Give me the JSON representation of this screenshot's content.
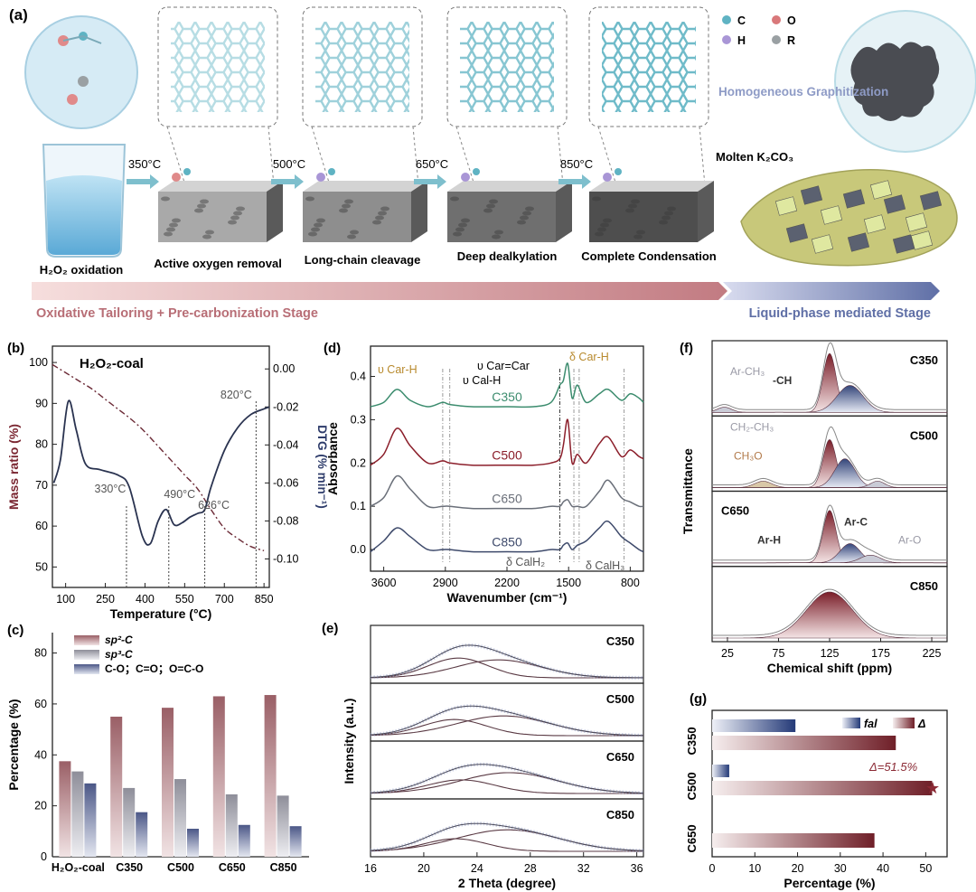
{
  "panel_a": {
    "label": "(a)",
    "steps": [
      {
        "temp": "350°C",
        "label": "Active oxygen removal"
      },
      {
        "temp": "500°C",
        "label": "Long-chain cleavage"
      },
      {
        "temp": "650°C",
        "label": "Deep dealkylation"
      },
      {
        "temp": "850°C",
        "label": "Complete Condensation"
      }
    ],
    "start_label": "H₂O₂ oxidation",
    "legend": [
      {
        "sym": "C",
        "color": "#5fb3c3"
      },
      {
        "sym": "O",
        "color": "#d9787a"
      },
      {
        "sym": "H",
        "color": "#a996d6"
      },
      {
        "sym": "R",
        "color": "#9aa0a3"
      }
    ],
    "graph_label": "Homogeneous Graphitization",
    "molten_label": "Molten K₂CO₃",
    "stage1": "Oxidative Tailoring + Pre-carbonization Stage",
    "stage2": "Liquid-phase mediated Stage"
  },
  "chart_data": [
    {
      "panel": "(b)",
      "type": "line",
      "title": "H₂O₂-coal",
      "xlabel": "Temperature (°C)",
      "ylabel": "Mass ratio (%)",
      "y2label": "DTG (% min⁻¹)",
      "xlim": [
        50,
        870
      ],
      "ylim": [
        45,
        104
      ],
      "y2lim": [
        -0.115,
        0.012
      ],
      "xticks": [
        100,
        250,
        400,
        550,
        700,
        850
      ],
      "yticks": [
        50,
        60,
        70,
        80,
        90,
        100
      ],
      "y2ticks": [
        "0.00",
        "-0.02",
        "-0.04",
        "-0.06",
        "-0.08",
        "-0.10"
      ],
      "series": [
        {
          "axis": "left",
          "x": [
            50,
            100,
            150,
            200,
            250,
            300,
            350,
            400,
            450,
            500,
            550,
            600,
            650,
            700,
            750,
            800,
            850
          ],
          "y": [
            99.5,
            97.5,
            95.5,
            93.5,
            91,
            88.5,
            86,
            83,
            79.5,
            76,
            72.5,
            69,
            64,
            59.5,
            57,
            55,
            54
          ]
        },
        {
          "axis": "right",
          "x": [
            55,
            80,
            110,
            140,
            175,
            230,
            300,
            340,
            390,
            420,
            450,
            480,
            510,
            540,
            570,
            600,
            626,
            650,
            700,
            750,
            800,
            850,
            870
          ],
          "y": [
            -0.06,
            -0.048,
            -0.017,
            -0.032,
            -0.05,
            -0.053,
            -0.056,
            -0.062,
            -0.088,
            -0.092,
            -0.08,
            -0.074,
            -0.082,
            -0.081,
            -0.078,
            -0.076,
            -0.074,
            -0.062,
            -0.043,
            -0.031,
            -0.024,
            -0.021,
            -0.02
          ]
        }
      ],
      "annotations": [
        {
          "text": "330°C",
          "x": 330
        },
        {
          "text": "490°C",
          "x": 490
        },
        {
          "text": "626°C",
          "x": 626
        },
        {
          "text": "820°C",
          "x": 820
        }
      ]
    },
    {
      "panel": "(c)",
      "type": "bar",
      "categories": [
        "H₂O₂-coal",
        "C350",
        "C500",
        "C650",
        "C850"
      ],
      "series": [
        {
          "name": "sp²-C",
          "values": [
            37.5,
            55,
            58.5,
            63,
            63.5
          ]
        },
        {
          "name": "sp³-C",
          "values": [
            33.5,
            27,
            30.5,
            24.5,
            24
          ]
        },
        {
          "name": "C-O；C=O；O=C-O",
          "values": [
            28.8,
            17.5,
            11,
            12.5,
            12
          ]
        }
      ],
      "ylabel": "Percentage (%)",
      "ylim": [
        0,
        88
      ],
      "yticks": [
        0,
        20,
        40,
        60,
        80
      ]
    },
    {
      "panel": "(d)",
      "type": "line",
      "xlabel": "Wavenumber (cm⁻¹)",
      "ylabel": "Absorbance",
      "xlim": [
        3750,
        650
      ],
      "ylim": [
        -0.05,
        0.47
      ],
      "xticks": [
        3600,
        2900,
        2200,
        1500,
        800
      ],
      "yticks": [
        "0.0",
        "0.1",
        "0.2",
        "0.3",
        "0.4"
      ],
      "series": [
        {
          "name": "C350",
          "color": "#3c8c6e",
          "x": [
            3750,
            3600,
            3450,
            3300,
            3100,
            2930,
            2850,
            2600,
            2200,
            1900,
            1700,
            1600,
            1560,
            1510,
            1460,
            1400,
            1300,
            1150,
            1050,
            900,
            800,
            700,
            650
          ],
          "y": [
            0.33,
            0.34,
            0.37,
            0.345,
            0.33,
            0.34,
            0.335,
            0.33,
            0.33,
            0.33,
            0.34,
            0.38,
            0.39,
            0.43,
            0.35,
            0.38,
            0.34,
            0.36,
            0.37,
            0.345,
            0.36,
            0.35,
            0.34
          ]
        },
        {
          "name": "C500",
          "color": "#8b1e2a",
          "x": [
            3750,
            3600,
            3450,
            3300,
            3100,
            2930,
            2850,
            2600,
            2200,
            1900,
            1700,
            1600,
            1560,
            1510,
            1460,
            1400,
            1300,
            1150,
            1050,
            900,
            800,
            700,
            650
          ],
          "y": [
            0.195,
            0.22,
            0.28,
            0.24,
            0.2,
            0.205,
            0.2,
            0.195,
            0.195,
            0.195,
            0.2,
            0.21,
            0.24,
            0.3,
            0.2,
            0.22,
            0.2,
            0.245,
            0.26,
            0.215,
            0.23,
            0.215,
            0.21
          ]
        },
        {
          "name": "C650",
          "color": "#6a6f79",
          "x": [
            3750,
            3600,
            3450,
            3300,
            3100,
            2930,
            2850,
            2600,
            2200,
            1900,
            1700,
            1600,
            1560,
            1510,
            1460,
            1400,
            1300,
            1150,
            1050,
            900,
            800,
            700,
            650
          ],
          "y": [
            0.1,
            0.12,
            0.17,
            0.14,
            0.1,
            0.1,
            0.1,
            0.095,
            0.095,
            0.095,
            0.1,
            0.1,
            0.11,
            0.115,
            0.1,
            0.1,
            0.1,
            0.135,
            0.16,
            0.12,
            0.11,
            0.1,
            0.1
          ]
        },
        {
          "name": "C850",
          "color": "#3e4a6b",
          "x": [
            3750,
            3600,
            3450,
            3300,
            3100,
            2930,
            2850,
            2600,
            2200,
            1900,
            1700,
            1600,
            1560,
            1510,
            1460,
            1400,
            1300,
            1150,
            1050,
            900,
            800,
            700,
            650
          ],
          "y": [
            -0.005,
            0.02,
            0.05,
            0.03,
            0.0,
            0.0,
            0.0,
            -0.005,
            -0.005,
            -0.005,
            0.0,
            0.0,
            0.01,
            0.015,
            0.0,
            0.01,
            0.02,
            0.05,
            0.065,
            0.03,
            0.015,
            0.0,
            -0.005
          ]
        }
      ],
      "vlines": [
        2930,
        2850,
        1600,
        1440,
        1380,
        870
      ],
      "annotations": [
        "υ Car-H",
        "υ Cal-H",
        "υ Car=Car",
        "δ Car-H",
        "δ CalH₂",
        "δ CalH₃"
      ]
    },
    {
      "panel": "(e)",
      "type": "line",
      "xlabel": "2 Theta (degree)",
      "ylabel": "Intensity (a.u.)",
      "xlim": [
        16,
        36.5
      ],
      "xticks": [
        16,
        20,
        24,
        28,
        32,
        36
      ],
      "series": [
        {
          "name": "C350",
          "peaks": [
            {
              "center": 22.6,
              "width": 3.2,
              "height": 0.55
            },
            {
              "center": 25.6,
              "width": 4.5,
              "height": 0.5
            }
          ]
        },
        {
          "name": "C500",
          "peaks": [
            {
              "center": 22.3,
              "width": 3.4,
              "height": 0.45
            },
            {
              "center": 26.0,
              "width": 5.0,
              "height": 0.55
            }
          ]
        },
        {
          "name": "C650",
          "peaks": [
            {
              "center": 22.8,
              "width": 3.6,
              "height": 0.38
            },
            {
              "center": 26.4,
              "width": 5.2,
              "height": 0.58
            }
          ]
        },
        {
          "name": "C850",
          "peaks": [
            {
              "center": 22.4,
              "width": 3.3,
              "height": 0.35
            },
            {
              "center": 26.3,
              "width": 5.4,
              "height": 0.6
            }
          ]
        }
      ]
    },
    {
      "panel": "(f)",
      "type": "area",
      "xlabel": "Chemical shift (ppm)",
      "ylabel": "Transmittance",
      "xlim": [
        10,
        240
      ],
      "xticks": [
        25,
        75,
        125,
        175,
        225
      ],
      "series": [
        {
          "name": "C350",
          "labels": [
            "Ar-CH₃",
            "-CH"
          ]
        },
        {
          "name": "C500",
          "labels": [
            "CH₂-CH₃",
            "CH₃O"
          ]
        },
        {
          "name": "C650",
          "labels": [
            "Ar-H",
            "Ar-C",
            "Ar-O"
          ]
        },
        {
          "name": "C850",
          "labels": []
        }
      ]
    },
    {
      "panel": "(g)",
      "type": "bar",
      "categories": [
        "C350",
        "C500",
        "C650"
      ],
      "series": [
        {
          "name": "fal",
          "values": [
            19.5,
            4.0,
            null
          ]
        },
        {
          "name": "Δ",
          "values": [
            43,
            51.5,
            38
          ]
        }
      ],
      "annotation": "Δ=51.5%",
      "xlabel": "Percentage (%)",
      "xlim": [
        0,
        55
      ],
      "xticks": [
        0,
        10,
        20,
        30,
        40,
        50
      ]
    }
  ]
}
